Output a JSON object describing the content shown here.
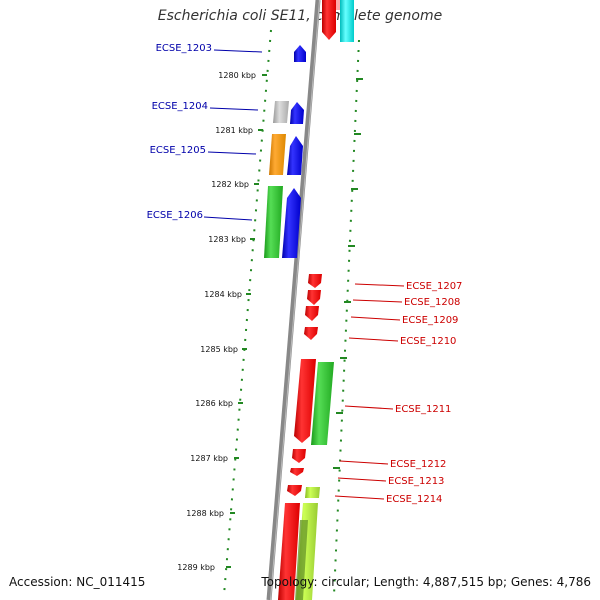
{
  "title": "Escherichia coli SE11, complete genome",
  "footer": {
    "accession": "Accession: NC_011415",
    "summary": "Topology: circular; Length: 4,887,515 bp; Genes: 4,786"
  },
  "colors": {
    "forward_label": "#0000aa",
    "reverse_label": "#cc0000",
    "backbone": "#888888",
    "ticks": "#228822"
  },
  "ruler": [
    "1280 kbp",
    "1281 kbp",
    "1282 kbp",
    "1283 kbp",
    "1284 kbp",
    "1285 kbp",
    "1286 kbp",
    "1287 kbp",
    "1288 kbp",
    "1289 kbp"
  ],
  "gene_labels": [
    {
      "name": "ECSE_1203",
      "strand": "forward"
    },
    {
      "name": "ECSE_1204",
      "strand": "forward"
    },
    {
      "name": "ECSE_1205",
      "strand": "forward"
    },
    {
      "name": "ECSE_1206",
      "strand": "forward"
    },
    {
      "name": "ECSE_1207",
      "strand": "reverse"
    },
    {
      "name": "ECSE_1208",
      "strand": "reverse"
    },
    {
      "name": "ECSE_1209",
      "strand": "reverse"
    },
    {
      "name": "ECSE_1210",
      "strand": "reverse"
    },
    {
      "name": "ECSE_1211",
      "strand": "reverse"
    },
    {
      "name": "ECSE_1212",
      "strand": "reverse"
    },
    {
      "name": "ECSE_1213",
      "strand": "reverse"
    },
    {
      "name": "ECSE_1214",
      "strand": "reverse"
    }
  ]
}
